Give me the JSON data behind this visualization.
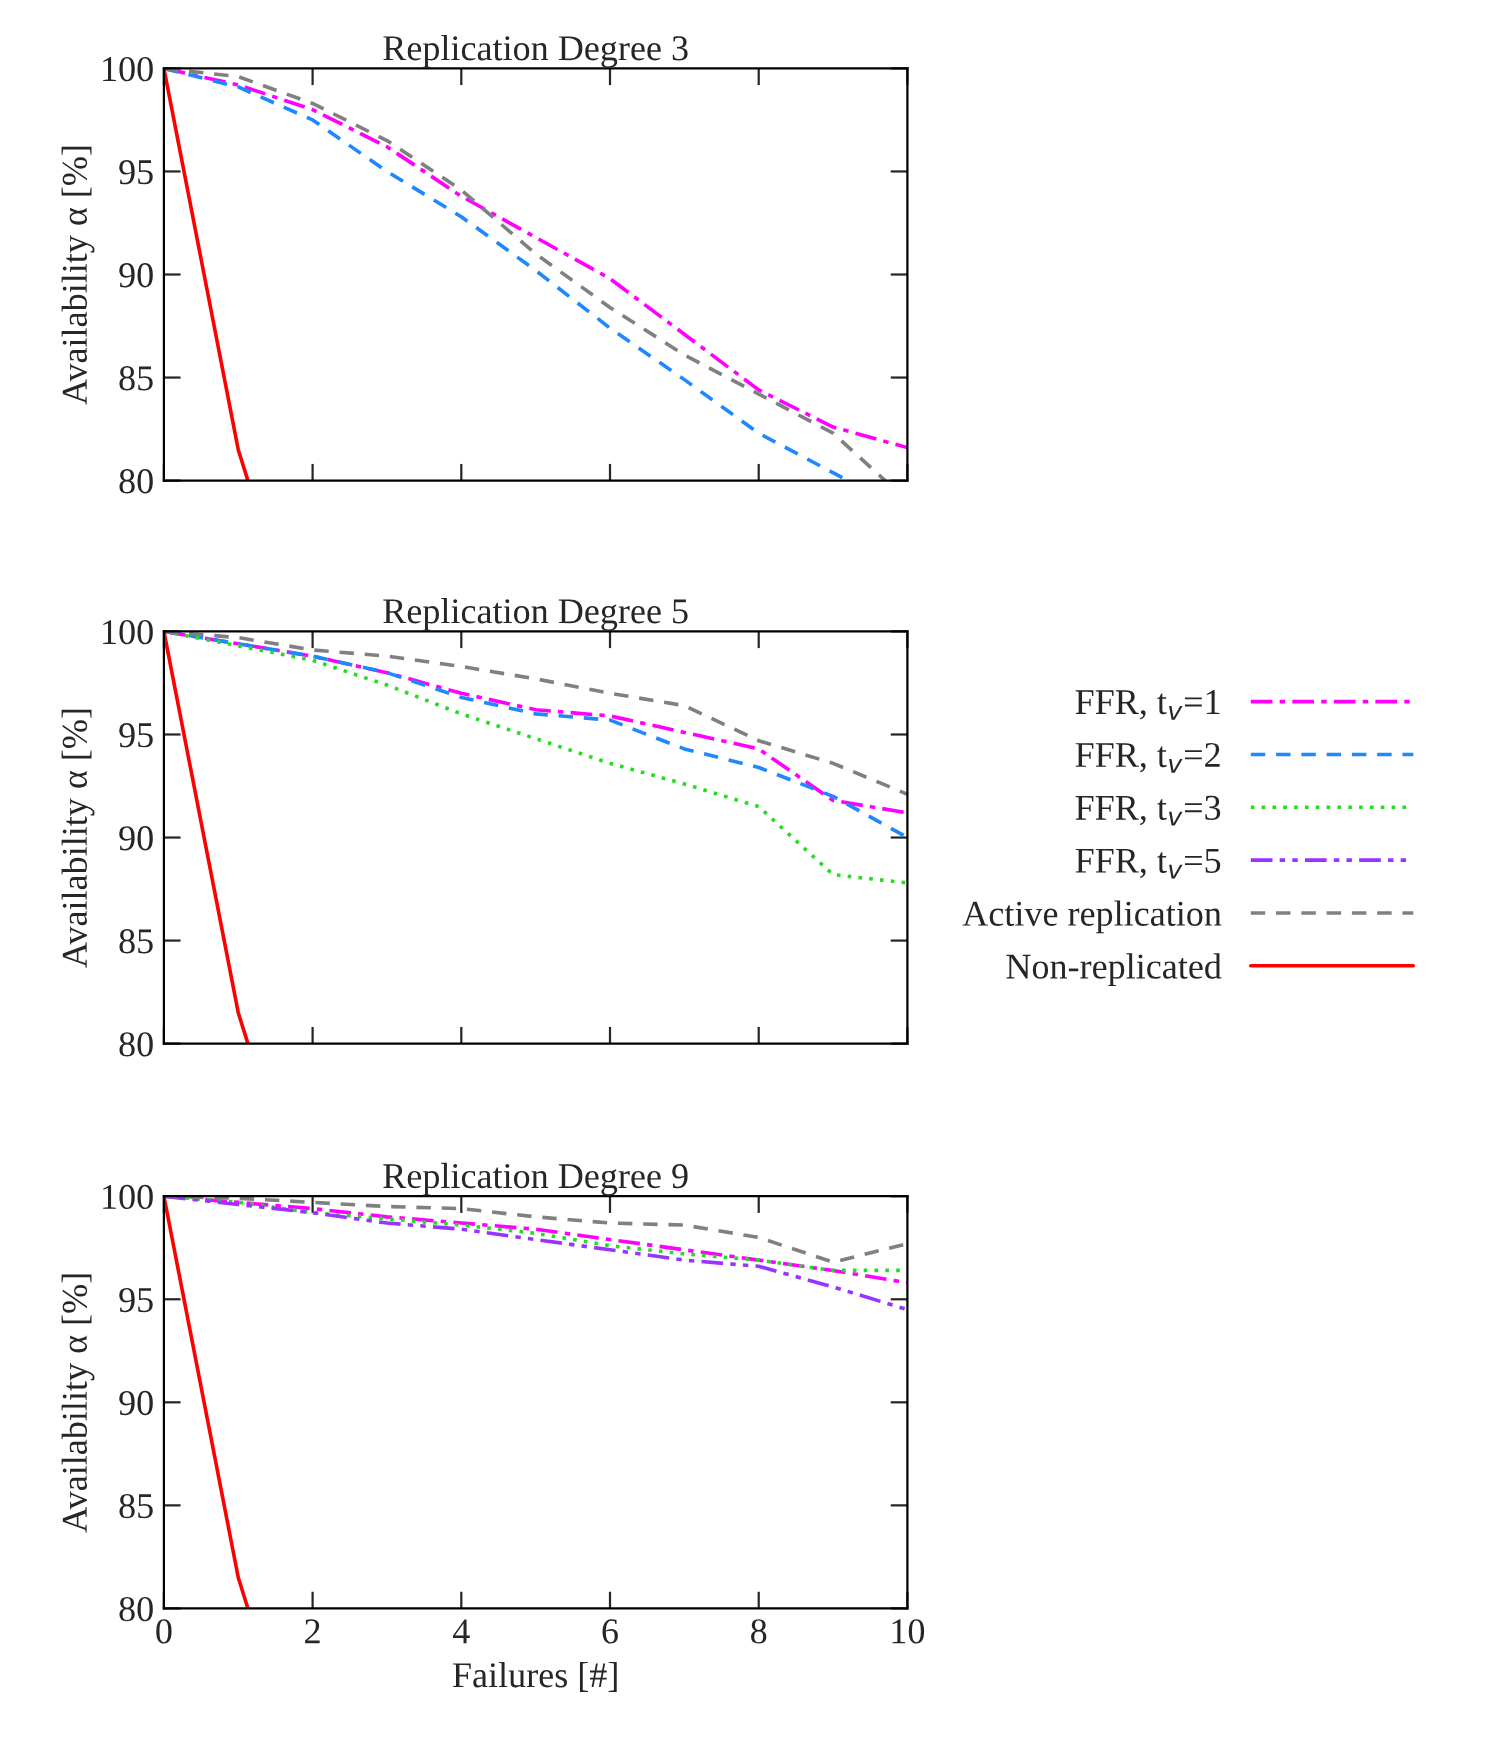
{
  "chart_data": [
    {
      "type": "line",
      "title": "Replication Degree 3",
      "ylabel": "Availability α [%]",
      "x": [
        0,
        1,
        2,
        3,
        4,
        5,
        6,
        7,
        8,
        9,
        10
      ],
      "xlim": [
        0,
        10
      ],
      "xticks": [
        0,
        2,
        4,
        6,
        8,
        10
      ],
      "ylim": [
        80,
        100
      ],
      "yticks": [
        80,
        85,
        90,
        95,
        100
      ],
      "tick_labels": "y",
      "grid": false,
      "legend": "right",
      "series": [
        {
          "name": "FFR, t$_{v}$=1",
          "color": "#ff00ff",
          "line_style": "dashdot",
          "values": [
            100,
            99.2,
            98,
            96.2,
            93.8,
            91.8,
            89.8,
            87.1,
            84.4,
            82.6,
            81.6
          ]
        },
        {
          "name": "FFR, t$_{v}$=2",
          "color": "#1e88ff",
          "line_style": "dashed",
          "x": [
            0,
            1,
            2,
            3,
            4,
            5,
            6,
            7,
            8,
            9.2
          ],
          "values": [
            100,
            99.1,
            97.5,
            95,
            92.8,
            90.2,
            87.4,
            84.9,
            82.3,
            80
          ]
        },
        {
          "name": "Active replication",
          "color": "#808080",
          "line_style": "dashed",
          "x": [
            0,
            1,
            2,
            3,
            4,
            5,
            6,
            7,
            8,
            9,
            9.7
          ],
          "values": [
            100,
            99.6,
            98.3,
            96.5,
            94.1,
            91.0,
            88.4,
            86.1,
            84.2,
            82.3,
            80
          ]
        },
        {
          "name": "Non-replicated",
          "color": "#ff0000",
          "line_style": "solid",
          "x": [
            0,
            1,
            1.13
          ],
          "values": [
            100,
            81.5,
            80
          ]
        }
      ]
    },
    {
      "type": "line",
      "title": "Replication Degree 5",
      "ylabel": "Availability α [%]",
      "x": [
        0,
        1,
        2,
        3,
        4,
        5,
        6,
        7,
        8,
        9,
        10
      ],
      "xlim": [
        0,
        10
      ],
      "xticks": [
        0,
        2,
        4,
        6,
        8,
        10
      ],
      "ylim": [
        80,
        100
      ],
      "yticks": [
        80,
        85,
        90,
        95,
        100
      ],
      "tick_labels": "y",
      "grid": false,
      "legend": "right",
      "series": [
        {
          "name": "FFR, t$_{v}$=1",
          "color": "#ff00ff",
          "line_style": "dashdot",
          "values": [
            100,
            99.4,
            98.8,
            98.0,
            97.0,
            96.2,
            95.9,
            95.1,
            94.3,
            91.8,
            91.2
          ]
        },
        {
          "name": "FFR, t$_{v}$=2",
          "color": "#1e88ff",
          "line_style": "dashed",
          "values": [
            100,
            99.4,
            98.8,
            98.0,
            96.8,
            96.0,
            95.7,
            94.3,
            93.4,
            92.0,
            90.0
          ]
        },
        {
          "name": "FFR, t$_{v}$=3",
          "color": "#22dd22",
          "line_style": "dotted",
          "values": [
            100,
            99.3,
            98.6,
            97.4,
            96.0,
            94.8,
            93.6,
            92.6,
            91.5,
            88.2,
            87.8
          ]
        },
        {
          "name": "Active replication",
          "color": "#808080",
          "line_style": "dashed",
          "values": [
            100,
            99.7,
            99.1,
            98.8,
            98.3,
            97.7,
            97.0,
            96.4,
            94.7,
            93.6,
            92.1
          ]
        },
        {
          "name": "Non-replicated",
          "color": "#ff0000",
          "line_style": "solid",
          "x": [
            0,
            1,
            1.13
          ],
          "values": [
            100,
            81.5,
            80
          ]
        }
      ]
    },
    {
      "type": "line",
      "title": "Replication Degree 9",
      "xlabel": "Failures [#]",
      "ylabel": "Availability α [%]",
      "x": [
        0,
        1,
        2,
        3,
        4,
        5,
        6,
        7,
        8,
        9,
        10
      ],
      "xlim": [
        0,
        10
      ],
      "xticks": [
        0,
        2,
        4,
        6,
        8,
        10
      ],
      "ylim": [
        80,
        100
      ],
      "yticks": [
        80,
        85,
        90,
        95,
        100
      ],
      "grid": false,
      "legend": "right",
      "series": [
        {
          "name": "FFR, t$_{v}$=1",
          "color": "#ff00ff",
          "line_style": "dashdot",
          "values": [
            100,
            99.7,
            99.4,
            99.0,
            98.7,
            98.4,
            97.9,
            97.4,
            96.9,
            96.4,
            95.8
          ]
        },
        {
          "name": "FFR, t$_{v}$=3",
          "color": "#22dd22",
          "line_style": "dotted",
          "values": [
            100,
            99.7,
            99.2,
            98.9,
            98.6,
            98.2,
            97.6,
            97.2,
            96.9,
            96.4,
            96.4
          ]
        },
        {
          "name": "FFR, t$_{v}$=5",
          "color": "#9933ff",
          "line_style": "dashdotdot",
          "values": [
            100,
            99.6,
            99.2,
            98.7,
            98.4,
            97.9,
            97.4,
            96.9,
            96.6,
            95.6,
            94.5
          ]
        },
        {
          "name": "Active replication",
          "color": "#808080",
          "line_style": "dashed",
          "values": [
            100,
            99.9,
            99.7,
            99.5,
            99.4,
            99.0,
            98.7,
            98.6,
            98.0,
            96.8,
            97.7
          ]
        },
        {
          "name": "Non-replicated",
          "color": "#ff0000",
          "line_style": "solid",
          "x": [
            0,
            1,
            1.13
          ],
          "values": [
            100,
            81.5,
            80
          ]
        }
      ]
    }
  ]
}
